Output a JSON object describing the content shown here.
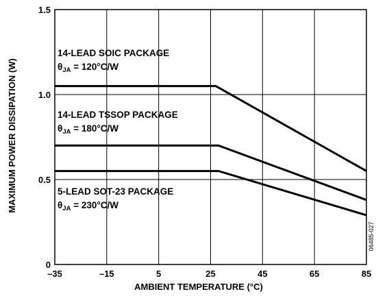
{
  "chart_data": {
    "type": "line",
    "xlabel": "AMBIENT TEMPERATURE (°C)",
    "ylabel": "MAXIMUM POWER DISSIPATION (W)",
    "xlim": [
      -35,
      85
    ],
    "ylim": [
      0,
      1.5
    ],
    "xticks": [
      -35,
      -15,
      5,
      25,
      45,
      65,
      85
    ],
    "xtick_labels": [
      "–35",
      "–15",
      "5",
      "25",
      "45",
      "65",
      "85"
    ],
    "yticks": [
      0,
      0.5,
      1.0,
      1.5
    ],
    "ytick_labels": [
      "0",
      "0.5",
      "1.0",
      "1.5"
    ],
    "grid": true,
    "series": [
      {
        "points": [
          [
            -35,
            1.05
          ],
          [
            27,
            1.05
          ],
          [
            85,
            0.55
          ]
        ],
        "annotation": {
          "line1": "14-LEAD SOIC PACKAGE",
          "theta": "θ",
          "sub": "JA",
          "value": " = 120°C/W"
        }
      },
      {
        "points": [
          [
            -35,
            0.7
          ],
          [
            28,
            0.7
          ],
          [
            85,
            0.38
          ]
        ],
        "annotation": {
          "line1": "14-LEAD TSSOP PACKAGE",
          "theta": "θ",
          "sub": "JA",
          "value": " = 180°C/W"
        }
      },
      {
        "points": [
          [
            -35,
            0.55
          ],
          [
            28,
            0.55
          ],
          [
            85,
            0.29
          ]
        ],
        "annotation": {
          "line1": "5-LEAD SOT-23 PACKAGE",
          "theta": "θ",
          "sub": "JA",
          "value": " = 230°C/W"
        }
      }
    ],
    "figure_code": "06485-027"
  }
}
